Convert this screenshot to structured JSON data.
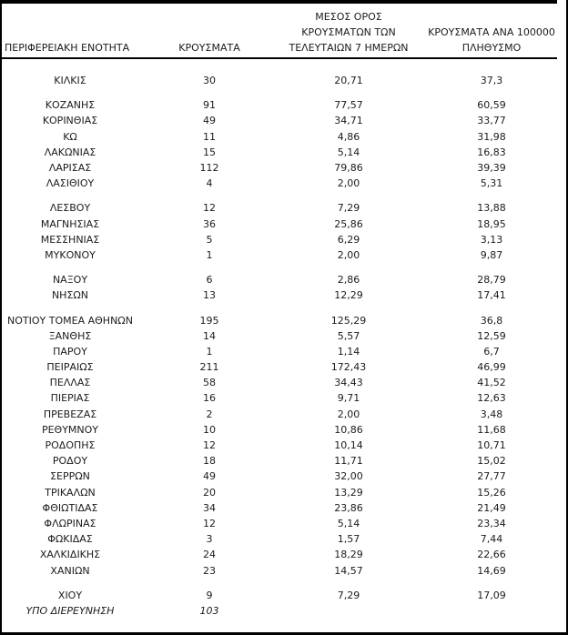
{
  "page": {
    "background": "#ffffff",
    "text_color": "#1b1b1b",
    "border_color": "#000000"
  },
  "table": {
    "headers": {
      "col1": "ΠΕΡΙΦΕΡΕΙΑΚΗ ΕΝΟΤΗΤΑ",
      "col2": "ΚΡΟΥΣΜΑΤΑ",
      "col3_lines": [
        "ΜΕΣΟΣ ΟΡΟΣ",
        "ΚΡΟΥΣΜΑΤΩΝ ΤΩΝ",
        "ΤΕΛΕΥΤΑΙΩΝ 7 ΗΜΕΡΩΝ"
      ],
      "col4_lines": [
        "ΚΡΟΥΣΜΑΤΑ ΑΝΑ 100000",
        "ΠΛΗΘΥΣΜΟ"
      ]
    },
    "groups": [
      [
        {
          "name": "ΚΙΛΚΙΣ",
          "cases": "30",
          "avg7": "20,71",
          "per100k": "37,3"
        }
      ],
      [
        {
          "name": "ΚΟΖΑΝΗΣ",
          "cases": "91",
          "avg7": "77,57",
          "per100k": "60,59"
        },
        {
          "name": "ΚΟΡΙΝΘΙΑΣ",
          "cases": "49",
          "avg7": "34,71",
          "per100k": "33,77"
        },
        {
          "name": "ΚΩ",
          "cases": "11",
          "avg7": "4,86",
          "per100k": "31,98"
        },
        {
          "name": "ΛΑΚΩΝΙΑΣ",
          "cases": "15",
          "avg7": "5,14",
          "per100k": "16,83"
        },
        {
          "name": "ΛΑΡΙΣΑΣ",
          "cases": "112",
          "avg7": "79,86",
          "per100k": "39,39"
        },
        {
          "name": "ΛΑΣΙΘΙΟΥ",
          "cases": "4",
          "avg7": "2,00",
          "per100k": "5,31"
        }
      ],
      [
        {
          "name": "ΛΕΣΒΟΥ",
          "cases": "12",
          "avg7": "7,29",
          "per100k": "13,88"
        },
        {
          "name": "ΜΑΓΝΗΣΙΑΣ",
          "cases": "36",
          "avg7": "25,86",
          "per100k": "18,95"
        },
        {
          "name": "ΜΕΣΣΗΝΙΑΣ",
          "cases": "5",
          "avg7": "6,29",
          "per100k": "3,13"
        },
        {
          "name": "ΜΥΚΟΝΟΥ",
          "cases": "1",
          "avg7": "2,00",
          "per100k": "9,87"
        }
      ],
      [
        {
          "name": "ΝΑΞΟΥ",
          "cases": "6",
          "avg7": "2,86",
          "per100k": "28,79"
        },
        {
          "name": "ΝΗΣΩΝ",
          "cases": "13",
          "avg7": "12,29",
          "per100k": "17,41"
        }
      ],
      [
        {
          "name": "ΝΟΤΙΟΥ ΤΟΜΕΑ ΑΘΗΝΩΝ",
          "cases": "195",
          "avg7": "125,29",
          "per100k": "36,8"
        },
        {
          "name": "ΞΑΝΘΗΣ",
          "cases": "14",
          "avg7": "5,57",
          "per100k": "12,59"
        },
        {
          "name": "ΠΑΡΟΥ",
          "cases": "1",
          "avg7": "1,14",
          "per100k": "6,7"
        },
        {
          "name": "ΠΕΙΡΑΙΩΣ",
          "cases": "211",
          "avg7": "172,43",
          "per100k": "46,99"
        },
        {
          "name": "ΠΕΛΛΑΣ",
          "cases": "58",
          "avg7": "34,43",
          "per100k": "41,52"
        },
        {
          "name": "ΠΙΕΡΙΑΣ",
          "cases": "16",
          "avg7": "9,71",
          "per100k": "12,63"
        },
        {
          "name": "ΠΡΕΒΕΖΑΣ",
          "cases": "2",
          "avg7": "2,00",
          "per100k": "3,48"
        },
        {
          "name": "ΡΕΘΥΜΝΟΥ",
          "cases": "10",
          "avg7": "10,86",
          "per100k": "11,68"
        },
        {
          "name": "ΡΟΔΟΠΗΣ",
          "cases": "12",
          "avg7": "10,14",
          "per100k": "10,71"
        },
        {
          "name": "ΡΟΔΟΥ",
          "cases": "18",
          "avg7": "11,71",
          "per100k": "15,02"
        },
        {
          "name": "ΣΕΡΡΩΝ",
          "cases": "49",
          "avg7": "32,00",
          "per100k": "27,77"
        },
        {
          "name": "ΤΡΙΚΑΛΩΝ",
          "cases": "20",
          "avg7": "13,29",
          "per100k": "15,26"
        },
        {
          "name": "ΦΘΙΩΤΙΔΑΣ",
          "cases": "34",
          "avg7": "23,86",
          "per100k": "21,49"
        },
        {
          "name": "ΦΛΩΡΙΝΑΣ",
          "cases": "12",
          "avg7": "5,14",
          "per100k": "23,34"
        },
        {
          "name": "ΦΩΚΙΔΑΣ",
          "cases": "3",
          "avg7": "1,57",
          "per100k": "7,44"
        },
        {
          "name": "ΧΑΛΚΙΔΙΚΗΣ",
          "cases": "24",
          "avg7": "18,29",
          "per100k": "22,66"
        },
        {
          "name": "ΧΑΝΙΩΝ",
          "cases": "23",
          "avg7": "14,57",
          "per100k": "14,69"
        }
      ],
      [
        {
          "name": "ΧΙΟΥ",
          "cases": "9",
          "avg7": "7,29",
          "per100k": "17,09"
        },
        {
          "name": "ΥΠΟ ΔΙΕΡΕΥΝΗΣΗ",
          "cases": "103",
          "avg7": "",
          "per100k": "",
          "italic": true
        }
      ]
    ]
  }
}
